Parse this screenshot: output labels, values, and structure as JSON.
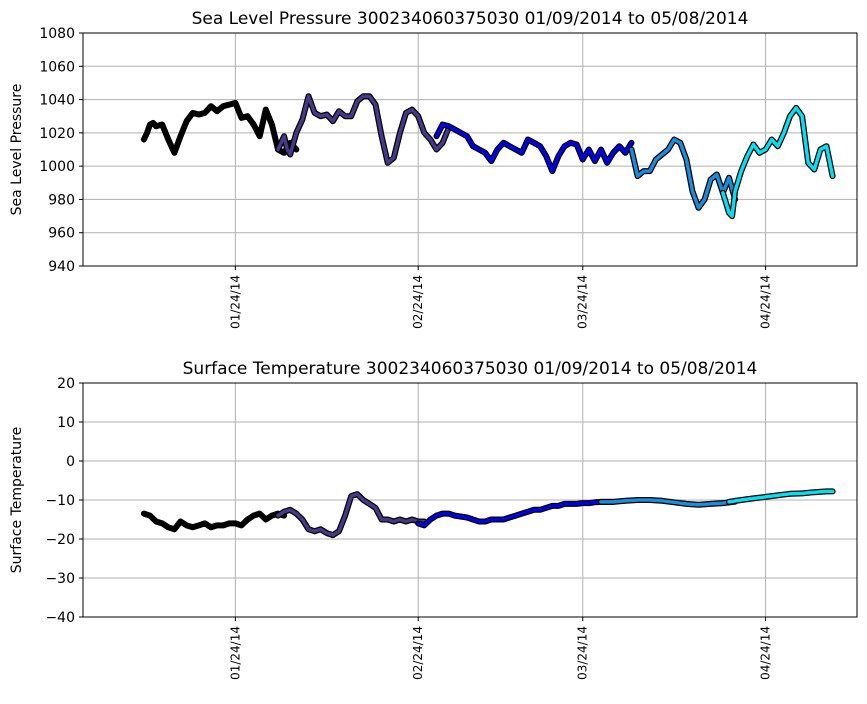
{
  "chart_data": [
    {
      "type": "line",
      "title": "Sea Level Pressure 300234060375030  01/09/2014 to 05/08/2014",
      "xlabel": "",
      "ylabel": "Sea Level Pressure",
      "xlim_days": [
        -10,
        117
      ],
      "ylim": [
        940,
        1080
      ],
      "yticks": [
        940,
        960,
        980,
        1000,
        1020,
        1040,
        1060,
        1080
      ],
      "xticks": [
        {
          "day": 15,
          "label": "01/24/14"
        },
        {
          "day": 45,
          "label": "02/24/14"
        },
        {
          "day": 72,
          "label": "03/24/14"
        },
        {
          "day": 102,
          "label": "04/24/14"
        }
      ],
      "grid": true,
      "series": [
        {
          "name": "segment-1",
          "color": "#000000",
          "x": [
            0,
            0.5,
            1,
            1.5,
            2,
            3,
            4,
            5,
            6,
            7,
            8,
            9,
            10,
            11,
            12,
            13,
            14,
            15,
            16,
            17,
            18,
            19,
            20,
            21,
            22,
            23,
            24,
            25
          ],
          "y": [
            1016,
            1020,
            1025,
            1026,
            1024,
            1025,
            1016,
            1008,
            1018,
            1027,
            1032,
            1031,
            1032,
            1036,
            1033,
            1036,
            1037,
            1038,
            1029,
            1030,
            1025,
            1018,
            1034,
            1025,
            1010,
            1008,
            1014,
            1010
          ]
        },
        {
          "name": "segment-2",
          "color": "#443a87",
          "x": [
            22,
            23,
            23.5,
            24,
            25,
            26,
            27,
            28,
            29,
            30,
            31,
            32,
            33,
            34,
            35,
            36,
            37,
            38,
            39,
            40,
            41,
            42,
            43,
            44,
            45,
            46,
            47,
            48,
            49,
            50
          ],
          "y": [
            1010,
            1018,
            1010,
            1007,
            1020,
            1028,
            1042,
            1032,
            1030,
            1031,
            1027,
            1033,
            1030,
            1030,
            1039,
            1042,
            1042,
            1037,
            1018,
            1002,
            1005,
            1020,
            1032,
            1034,
            1030,
            1020,
            1016,
            1010,
            1014,
            1023
          ]
        },
        {
          "name": "segment-3",
          "color": "#0000e0",
          "x": [
            48,
            49,
            50,
            51,
            53,
            54,
            55,
            56,
            57,
            58,
            59,
            60,
            61,
            62,
            63,
            64,
            65,
            66,
            67,
            68,
            69,
            70,
            71,
            72,
            73,
            74,
            75,
            76,
            77,
            78,
            79,
            80
          ],
          "y": [
            1018,
            1025,
            1024,
            1022,
            1018,
            1012,
            1010,
            1008,
            1003,
            1010,
            1014,
            1012,
            1010,
            1008,
            1016,
            1014,
            1012,
            1006,
            997,
            1006,
            1012,
            1014,
            1013,
            1004,
            1010,
            1003,
            1010,
            1002,
            1008,
            1012,
            1008,
            1014
          ]
        },
        {
          "name": "segment-4",
          "color": "#1a8cd8",
          "x": [
            80,
            81,
            82,
            83,
            84,
            85,
            86,
            87,
            88,
            89,
            90,
            91,
            92,
            93,
            94,
            95,
            96,
            97
          ],
          "y": [
            1010,
            994,
            997,
            997,
            1004,
            1007,
            1010,
            1016,
            1014,
            1004,
            985,
            975,
            980,
            992,
            995,
            984,
            993,
            980
          ]
        },
        {
          "name": "segment-5",
          "color": "#00e0f0",
          "x": [
            95,
            96,
            96.5,
            97,
            98,
            99,
            100,
            101,
            102,
            103,
            104,
            105,
            106,
            107,
            108,
            109,
            110,
            111,
            112,
            113
          ],
          "y": [
            984,
            972,
            970,
            985,
            997,
            1006,
            1013,
            1008,
            1010,
            1016,
            1012,
            1020,
            1030,
            1035,
            1030,
            1002,
            998,
            1010,
            1012,
            994
          ]
        }
      ]
    },
    {
      "type": "line",
      "title": "Surface Temperature 300234060375030  01/09/2014 to 05/08/2014",
      "xlabel": "",
      "ylabel": "Surface Temperature",
      "xlim_days": [
        -10,
        117
      ],
      "ylim": [
        -40,
        20
      ],
      "yticks": [
        -40,
        -30,
        -20,
        -10,
        0,
        10,
        20
      ],
      "xticks": [
        {
          "day": 15,
          "label": "01/24/14"
        },
        {
          "day": 45,
          "label": "02/24/14"
        },
        {
          "day": 72,
          "label": "03/24/14"
        },
        {
          "day": 102,
          "label": "04/24/14"
        }
      ],
      "grid": true,
      "series": [
        {
          "name": "segment-1",
          "color": "#000000",
          "x": [
            0,
            1,
            2,
            3,
            4,
            5,
            6,
            7,
            8,
            9,
            10,
            11,
            12,
            13,
            14,
            15,
            16,
            17,
            18,
            19,
            20,
            21,
            22,
            23
          ],
          "y": [
            -13.5,
            -14,
            -15.5,
            -16,
            -17,
            -17.5,
            -15.5,
            -16.5,
            -17,
            -16.5,
            -16,
            -17,
            -16.5,
            -16.5,
            -16,
            -16,
            -16.5,
            -15,
            -14,
            -13.5,
            -15,
            -14,
            -13.5,
            -14
          ]
        },
        {
          "name": "segment-2",
          "color": "#443a87",
          "x": [
            22,
            23,
            24,
            25,
            26,
            27,
            28,
            29,
            30,
            31,
            32,
            33,
            34,
            35,
            36,
            37,
            38,
            39,
            40,
            41,
            42,
            43,
            44,
            45,
            46
          ],
          "y": [
            -14,
            -13,
            -12.5,
            -13.5,
            -15,
            -17.5,
            -18,
            -17.5,
            -18.5,
            -19,
            -18,
            -14,
            -9,
            -8.5,
            -10,
            -11,
            -12,
            -15,
            -15,
            -15.5,
            -15,
            -15.5,
            -15,
            -15.5,
            -15.5
          ]
        },
        {
          "name": "segment-3",
          "color": "#0000e0",
          "x": [
            45,
            46,
            47,
            48,
            49,
            50,
            51,
            53,
            54,
            55,
            56,
            57,
            58,
            59,
            60,
            61,
            62,
            63,
            64,
            65,
            66,
            67,
            68,
            69,
            70,
            71,
            72,
            73,
            74,
            75,
            76,
            77
          ],
          "y": [
            -16,
            -16.5,
            -15,
            -14,
            -13.5,
            -13.5,
            -14,
            -14.5,
            -15,
            -15.5,
            -15.5,
            -15,
            -15,
            -15,
            -14.5,
            -14,
            -13.5,
            -13,
            -12.5,
            -12.5,
            -12,
            -11.5,
            -11.5,
            -11,
            -11,
            -11,
            -10.8,
            -10.8,
            -10.6,
            -10.5,
            -10.5,
            -10.5
          ]
        },
        {
          "name": "segment-4",
          "color": "#1a8cd8",
          "x": [
            75,
            77,
            79,
            81,
            83,
            85,
            87,
            89,
            91,
            93,
            95,
            97
          ],
          "y": [
            -10.5,
            -10.5,
            -10.2,
            -10,
            -10,
            -10.2,
            -10.6,
            -11,
            -11.2,
            -11,
            -10.8,
            -10.4
          ]
        },
        {
          "name": "segment-5",
          "color": "#00e0f0",
          "x": [
            96,
            98,
            100,
            102,
            104,
            106,
            108,
            110,
            112,
            113
          ],
          "y": [
            -10.5,
            -10,
            -9.6,
            -9.2,
            -8.8,
            -8.4,
            -8.3,
            -8,
            -7.8,
            -7.8
          ]
        }
      ]
    }
  ]
}
